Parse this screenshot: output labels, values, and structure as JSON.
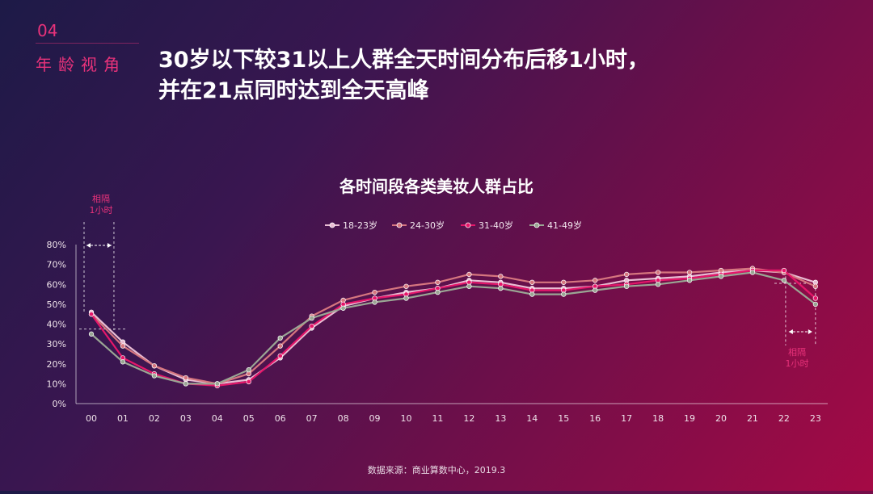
{
  "header": {
    "section_number": "04",
    "section_label": "年龄视角",
    "headline_line1": "30岁以下较31以上人群全天时间分布后移1小时，",
    "headline_line2": "并在21点同时达到全天高峰"
  },
  "annotations": {
    "left_gap": "相隔\n1小时",
    "right_gap": "相隔\n1小时"
  },
  "source": "数据来源：商业算数中心，2019.3",
  "colors": {
    "accent": "#e8327a",
    "s1": "#e9bdd4",
    "s2": "#d6767f",
    "s3": "#e5166a",
    "s4": "#9aa694"
  },
  "chart_data": {
    "type": "line",
    "title": "各时间段各类美妆人群占比",
    "legend_position": "top",
    "grid": false,
    "x": [
      "00",
      "01",
      "02",
      "03",
      "04",
      "05",
      "06",
      "07",
      "08",
      "09",
      "10",
      "11",
      "12",
      "13",
      "14",
      "15",
      "16",
      "17",
      "18",
      "19",
      "20",
      "21",
      "22",
      "23"
    ],
    "ylim": [
      0,
      80
    ],
    "yticks": [
      "0%",
      "10%",
      "20%",
      "30%",
      "40%",
      "50%",
      "60%",
      "70%",
      "80%"
    ],
    "series": [
      {
        "name": "18-23岁",
        "values": [
          46,
          31,
          19,
          12,
          10,
          12,
          23,
          38,
          49,
          53,
          56,
          58,
          62,
          61,
          58,
          58,
          59,
          62,
          63,
          64,
          66,
          67,
          66,
          61
        ]
      },
      {
        "name": "24-30岁",
        "values": [
          45,
          29,
          19,
          13,
          10,
          15,
          29,
          44,
          52,
          56,
          59,
          61,
          65,
          64,
          61,
          61,
          62,
          65,
          66,
          66,
          67,
          68,
          66,
          59
        ]
      },
      {
        "name": "31-40岁",
        "values": [
          45,
          23,
          15,
          10,
          9,
          11,
          24,
          39,
          50,
          53,
          55,
          58,
          61,
          60,
          57,
          57,
          59,
          60,
          62,
          63,
          65,
          67,
          67,
          53
        ]
      },
      {
        "name": "41-49岁",
        "values": [
          35,
          21,
          14,
          10,
          10,
          17,
          33,
          43,
          48,
          51,
          53,
          56,
          59,
          58,
          55,
          55,
          57,
          59,
          60,
          62,
          64,
          66,
          62,
          50
        ]
      }
    ]
  }
}
